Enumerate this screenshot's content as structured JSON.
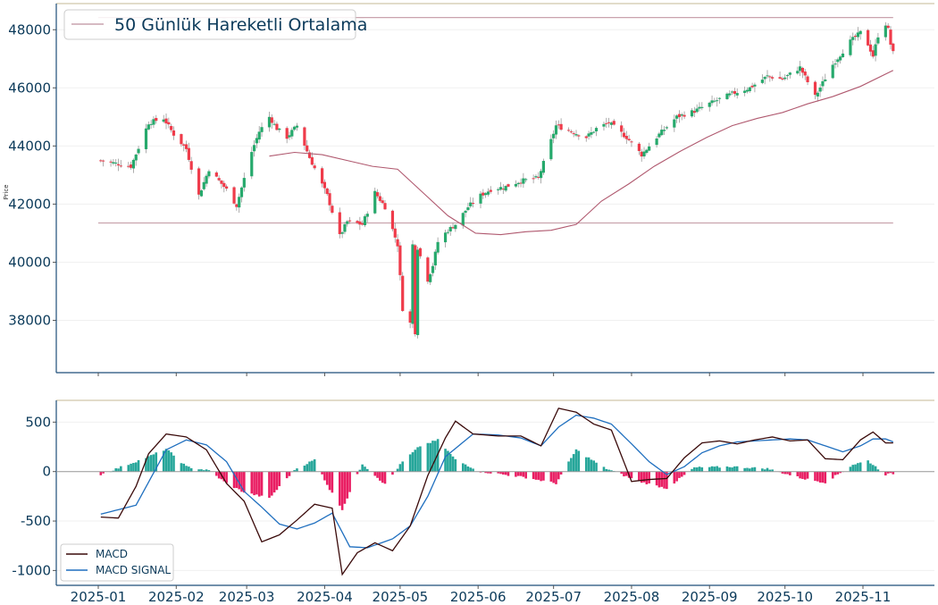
{
  "chart_data": [
    {
      "type": "candlestick",
      "ylabel": "Price",
      "ylim": [
        36200,
        48900
      ],
      "yticks": [
        38000,
        40000,
        42000,
        44000,
        46000,
        48000
      ],
      "legend": {
        "placement": "top-left",
        "entries": [
          "50 Günlük Hareketli Ortalama"
        ]
      },
      "horizontal_lines": [
        41350,
        48420
      ],
      "grid": true,
      "colors": {
        "up": "#26a96c",
        "down": "#ef3b4a",
        "ma": "#b0596f",
        "hline": "#c9a3ad"
      },
      "anchors": {
        "dates": [
          "2025-01-02",
          "2025-01-14",
          "2025-01-21",
          "2025-01-27",
          "2025-01-31",
          "2025-02-05",
          "2025-02-10",
          "2025-02-14",
          "2025-02-21",
          "2025-02-25",
          "2025-03-03",
          "2025-03-06",
          "2025-03-10",
          "2025-03-13",
          "2025-03-17",
          "2025-03-21",
          "2025-03-26",
          "2025-04-02",
          "2025-04-07",
          "2025-04-10",
          "2025-04-16",
          "2025-04-21",
          "2025-04-25",
          "2025-04-30",
          "2025-05-02",
          "2025-05-05",
          "2025-05-06",
          "2025-05-07",
          "2025-05-08",
          "2025-05-09",
          "2025-05-12",
          "2025-05-14",
          "2025-05-16",
          "2025-05-20",
          "2025-05-23",
          "2025-05-28",
          "2025-06-02",
          "2025-06-06",
          "2025-06-12",
          "2025-06-18",
          "2025-06-25",
          "2025-07-02",
          "2025-07-08",
          "2025-07-14",
          "2025-07-18",
          "2025-07-23",
          "2025-07-30",
          "2025-08-05",
          "2025-08-12",
          "2025-08-19",
          "2025-08-26",
          "2025-09-02",
          "2025-09-10",
          "2025-09-17",
          "2025-09-24",
          "2025-09-30",
          "2025-10-07",
          "2025-10-13",
          "2025-10-20",
          "2025-10-27",
          "2025-10-31",
          "2025-11-03",
          "2025-11-05",
          "2025-11-07",
          "2025-11-10",
          "2025-11-11",
          "2025-11-12",
          "2025-11-13"
        ],
        "close": [
          43500,
          43300,
          44800,
          44950,
          44400,
          43900,
          42300,
          43200,
          42500,
          41950,
          43800,
          44500,
          45000,
          44600,
          44300,
          44700,
          43600,
          42300,
          40900,
          41400,
          41300,
          42400,
          41900,
          40600,
          38400,
          37900,
          40600,
          37600,
          40500,
          40200,
          39400,
          39900,
          40700,
          41100,
          41300,
          41900,
          42300,
          42500,
          42600,
          42800,
          42900,
          44700,
          44500,
          44300,
          44600,
          44800,
          44300,
          43700,
          44400,
          45000,
          45200,
          45500,
          45800,
          46000,
          46400,
          46300,
          46700,
          45700,
          46800,
          47600,
          47900,
          47500,
          47100,
          47800,
          48200,
          48000,
          47500,
          47200
        ]
      },
      "moving_average": {
        "dates": [
          "2025-03-10",
          "2025-03-20",
          "2025-03-31",
          "2025-04-10",
          "2025-04-20",
          "2025-04-30",
          "2025-05-10",
          "2025-05-20",
          "2025-05-31",
          "2025-06-10",
          "2025-06-20",
          "2025-06-30",
          "2025-07-10",
          "2025-07-20",
          "2025-07-31",
          "2025-08-10",
          "2025-08-20",
          "2025-08-31",
          "2025-09-10",
          "2025-09-20",
          "2025-09-30",
          "2025-10-10",
          "2025-10-20",
          "2025-10-31",
          "2025-11-13"
        ],
        "values": [
          43650,
          43780,
          43700,
          43500,
          43300,
          43200,
          42400,
          41600,
          41000,
          40950,
          41050,
          41100,
          41300,
          42100,
          42700,
          43300,
          43800,
          44300,
          44700,
          44950,
          45150,
          45450,
          45700,
          46050,
          46600
        ]
      }
    },
    {
      "type": "line+bar",
      "ylim": [
        -1150,
        720
      ],
      "yticks": [
        -1000,
        -500,
        0,
        500
      ],
      "legend": {
        "placement": "bottom-left",
        "entries": [
          "MACD",
          "MACD SIGNAL"
        ]
      },
      "grid": true,
      "colors": {
        "macd": "#3a0a0a",
        "signal": "#1f6fbf",
        "hist_pos": "#26a69a",
        "hist_neg": "#e91e63"
      },
      "macd": {
        "dates": [
          "2025-01-02",
          "2025-01-09",
          "2025-01-16",
          "2025-01-21",
          "2025-01-28",
          "2025-02-05",
          "2025-02-13",
          "2025-02-21",
          "2025-02-28",
          "2025-03-07",
          "2025-03-14",
          "2025-03-21",
          "2025-03-28",
          "2025-04-04",
          "2025-04-08",
          "2025-04-14",
          "2025-04-21",
          "2025-04-28",
          "2025-05-05",
          "2025-05-12",
          "2025-05-19",
          "2025-05-23",
          "2025-05-30",
          "2025-06-09",
          "2025-06-18",
          "2025-06-26",
          "2025-07-03",
          "2025-07-10",
          "2025-07-17",
          "2025-07-24",
          "2025-08-01",
          "2025-08-08",
          "2025-08-15",
          "2025-08-22",
          "2025-08-29",
          "2025-09-05",
          "2025-09-12",
          "2025-09-19",
          "2025-09-26",
          "2025-10-03",
          "2025-10-10",
          "2025-10-17",
          "2025-10-24",
          "2025-10-31",
          "2025-11-05",
          "2025-11-10",
          "2025-11-13"
        ],
        "values": [
          -460,
          -470,
          -150,
          180,
          380,
          350,
          220,
          -120,
          -300,
          -710,
          -640,
          -490,
          -330,
          -370,
          -1040,
          -820,
          -720,
          -800,
          -550,
          -40,
          340,
          510,
          380,
          360,
          360,
          260,
          640,
          600,
          480,
          420,
          -100,
          -80,
          -70,
          140,
          290,
          310,
          280,
          320,
          350,
          310,
          320,
          130,
          120,
          320,
          400,
          290,
          290
        ]
      },
      "signal": {
        "dates": [
          "2025-01-02",
          "2025-01-16",
          "2025-01-28",
          "2025-02-05",
          "2025-02-13",
          "2025-02-21",
          "2025-02-28",
          "2025-03-07",
          "2025-03-14",
          "2025-03-21",
          "2025-03-28",
          "2025-04-04",
          "2025-04-11",
          "2025-04-18",
          "2025-04-28",
          "2025-05-05",
          "2025-05-12",
          "2025-05-19",
          "2025-05-30",
          "2025-06-09",
          "2025-06-18",
          "2025-06-26",
          "2025-07-03",
          "2025-07-10",
          "2025-07-17",
          "2025-07-24",
          "2025-08-01",
          "2025-08-08",
          "2025-08-15",
          "2025-08-22",
          "2025-08-29",
          "2025-09-05",
          "2025-09-12",
          "2025-09-19",
          "2025-09-26",
          "2025-10-03",
          "2025-10-10",
          "2025-10-17",
          "2025-10-24",
          "2025-10-31",
          "2025-11-05",
          "2025-11-10",
          "2025-11-13"
        ],
        "values": [
          -430,
          -340,
          220,
          320,
          270,
          100,
          -200,
          -360,
          -530,
          -580,
          -520,
          -420,
          -760,
          -770,
          -680,
          -550,
          -250,
          150,
          380,
          370,
          340,
          260,
          450,
          570,
          540,
          480,
          280,
          100,
          -30,
          50,
          190,
          260,
          300,
          310,
          320,
          330,
          320,
          260,
          200,
          260,
          330,
          330,
          300
        ]
      },
      "histogram": {
        "dates": [
          "2025-01-02",
          "2025-01-21",
          "2025-01-28",
          "2025-02-05",
          "2025-02-14",
          "2025-02-21",
          "2025-02-28",
          "2025-03-10",
          "2025-03-20",
          "2025-03-28",
          "2025-04-03",
          "2025-04-08",
          "2025-04-16",
          "2025-04-25",
          "2025-05-02",
          "2025-05-09",
          "2025-05-16",
          "2025-05-23",
          "2025-06-02",
          "2025-06-20",
          "2025-07-02",
          "2025-07-10",
          "2025-07-21",
          "2025-08-04",
          "2025-08-15",
          "2025-08-26",
          "2025-09-10",
          "2025-09-24",
          "2025-10-08",
          "2025-10-17",
          "2025-10-28",
          "2025-11-03",
          "2025-11-10",
          "2025-11-13"
        ],
        "values": [
          -30,
          150,
          230,
          50,
          10,
          -120,
          -210,
          -270,
          20,
          120,
          -180,
          -380,
          80,
          -130,
          100,
          260,
          320,
          120,
          0,
          -60,
          -120,
          220,
          40,
          -100,
          -170,
          40,
          50,
          30,
          -70,
          -110,
          70,
          110,
          -30,
          -20
        ]
      }
    }
  ],
  "x_axis": {
    "dates": [
      "2025-01-01",
      "2025-02-01",
      "2025-03-01",
      "2025-04-01",
      "2025-05-01",
      "2025-06-01",
      "2025-07-01",
      "2025-08-01",
      "2025-09-01",
      "2025-10-01",
      "2025-11-01"
    ],
    "labels": [
      "2025-01",
      "2025-02",
      "2025-03",
      "2025-04",
      "2025-05",
      "2025-06",
      "2025-07",
      "2025-08",
      "2025-09",
      "2025-10",
      "2025-11"
    ]
  }
}
